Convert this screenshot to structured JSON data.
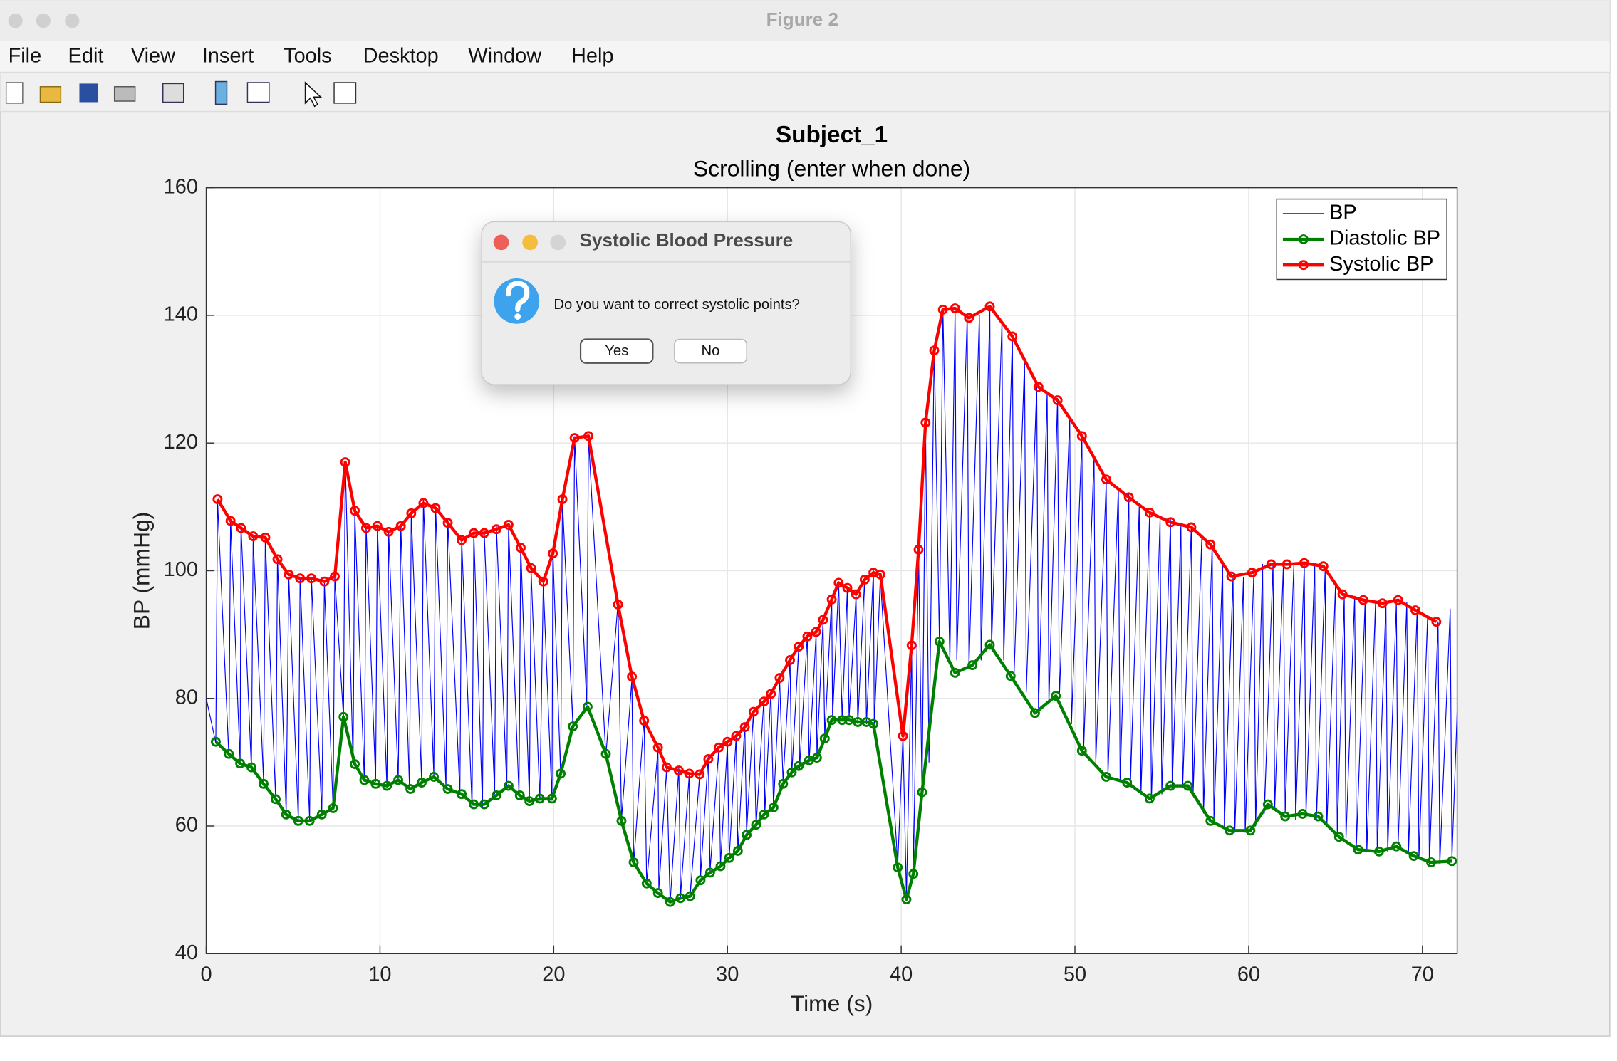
{
  "window": {
    "title": "Figure 2",
    "menu": [
      "File",
      "Edit",
      "View",
      "Insert",
      "Tools",
      "Desktop",
      "Window",
      "Help"
    ]
  },
  "dialog": {
    "title": "Systolic Blood Pressure",
    "message": "Do you want to correct systolic points?",
    "buttons": [
      "Yes",
      "No"
    ]
  },
  "chart_data": {
    "type": "line",
    "title": "Subject_1",
    "subtitle": "Scrolling (enter when done)",
    "xlabel": "Time (s)",
    "ylabel": "BP (mmHg)",
    "xlim": [
      0,
      72
    ],
    "ylim": [
      40,
      160
    ],
    "xticks": [
      0,
      10,
      20,
      30,
      40,
      50,
      60,
      70
    ],
    "yticks": [
      40,
      60,
      80,
      100,
      120,
      140,
      160
    ],
    "grid": true,
    "legend": "upper right",
    "series": [
      {
        "name": "BP",
        "color": "#0000ff",
        "marker": "none",
        "x": [
          0,
          0.55,
          0.65,
          1.3,
          1.4,
          1.95,
          2.0,
          2.6,
          2.7,
          3.3,
          3.4,
          4.0,
          4.1,
          4.6,
          4.75,
          5.3,
          5.4,
          5.95,
          6.05,
          6.65,
          6.8,
          7.3,
          7.4,
          7.9,
          8.0,
          8.45,
          8.55,
          9.1,
          9.2,
          9.75,
          9.85,
          10.4,
          10.5,
          11.05,
          11.2,
          11.7,
          11.8,
          12.4,
          12.5,
          13.1,
          13.2,
          13.8,
          13.9,
          14.6,
          14.7,
          15.3,
          15.4,
          15.9,
          16.0,
          16.6,
          16.7,
          17.3,
          17.4,
          18.0,
          18.1,
          18.6,
          18.7,
          19.2,
          19.4,
          19.9,
          19.95,
          20.4,
          20.5,
          21.1,
          21.2,
          21.9,
          22.0,
          23.0,
          23.7,
          23.9,
          24.5,
          24.6,
          25.2,
          25.35,
          26.0,
          26.05,
          26.5,
          26.7,
          27.2,
          27.3,
          27.8,
          27.85,
          28.4,
          28.45,
          28.9,
          29.0,
          29.5,
          29.6,
          30.0,
          30.1,
          30.5,
          30.6,
          31.0,
          31.1,
          31.5,
          31.65,
          32.1,
          32.15,
          32.5,
          32.65,
          33.0,
          33.2,
          33.6,
          33.7,
          34.1,
          34.15,
          34.6,
          34.7,
          35.1,
          35.15,
          35.5,
          35.6,
          36.0,
          36.05,
          36.4,
          36.6,
          36.9,
          37.0,
          37.4,
          37.5,
          37.9,
          38.0,
          38.4,
          38.45,
          38.8,
          39.8,
          40.1,
          40.3,
          40.6,
          40.7,
          41.0,
          41.2,
          41.4,
          41.6,
          41.9,
          42.2,
          42.4,
          42.8,
          43.1,
          43.2,
          43.8,
          43.9,
          44.5,
          44.6,
          45.1,
          45.2,
          45.8,
          45.9,
          46.4,
          46.5,
          47.1,
          47.2,
          47.8,
          47.9,
          48.4,
          48.5,
          49.0,
          49.1,
          49.7,
          49.8,
          50.4,
          50.5,
          51.1,
          51.2,
          51.8,
          51.9,
          52.5,
          52.6,
          53.1,
          53.2,
          53.7,
          53.8,
          54.3,
          54.4,
          54.9,
          55.0,
          55.5,
          55.6,
          56.1,
          56.2,
          56.7,
          56.8,
          57.3,
          57.4,
          57.9,
          58.0,
          58.5,
          58.6,
          59.1,
          59.2,
          59.7,
          59.8,
          60.3,
          60.4,
          60.8,
          60.9,
          61.4,
          61.5,
          62.0,
          62.1,
          62.6,
          62.7,
          63.2,
          63.3,
          63.8,
          63.9,
          64.4,
          64.5,
          65.0,
          65.1,
          65.5,
          65.6,
          66.1,
          66.2,
          66.7,
          66.8,
          67.3,
          67.4,
          67.9,
          68.0,
          68.5,
          68.6,
          69.1,
          69.2,
          69.7,
          69.8,
          70.3,
          70.4,
          70.9,
          71.0,
          71.6,
          71.7,
          72.0
        ],
        "values": [
          80,
          73,
          111,
          71,
          108,
          70,
          107,
          69,
          105,
          67,
          105,
          64,
          102,
          62,
          99,
          61,
          99,
          61,
          99,
          62,
          98,
          63,
          99,
          77,
          117,
          70,
          109,
          67,
          107,
          67,
          107,
          66,
          106,
          67,
          107,
          66,
          109,
          67,
          111,
          68,
          110,
          66,
          108,
          65,
          105,
          63,
          106,
          63,
          106,
          65,
          107,
          66,
          107,
          65,
          104,
          64,
          100,
          64,
          98,
          64,
          103,
          68,
          111,
          76,
          121,
          79,
          121,
          71,
          95,
          61,
          83,
          54,
          77,
          51,
          72,
          50,
          69,
          48,
          69,
          49,
          68,
          49,
          68,
          52,
          71,
          53,
          72,
          54,
          73,
          55,
          74,
          56,
          76,
          59,
          78,
          60,
          80,
          62,
          81,
          63,
          83,
          67,
          86,
          68,
          88,
          69,
          90,
          70,
          90,
          71,
          92,
          74,
          96,
          77,
          98,
          77,
          97,
          77,
          96,
          76,
          99,
          76,
          100,
          76,
          99,
          54,
          74,
          49,
          88,
          53,
          103,
          65,
          123,
          70,
          135,
          89,
          141,
          86,
          141,
          86,
          140,
          85,
          140,
          86,
          141,
          88,
          139,
          86,
          137,
          84,
          133,
          81,
          129,
          78,
          128,
          79,
          127,
          80,
          124,
          76,
          121,
          72,
          118,
          70,
          114,
          68,
          113,
          67,
          112,
          67,
          110,
          65,
          109,
          64,
          108,
          65,
          108,
          66,
          107,
          66,
          107,
          65,
          105,
          62,
          104,
          61,
          101,
          60,
          99,
          59,
          99,
          59,
          100,
          60,
          101,
          62,
          101,
          63,
          101,
          62,
          101,
          61,
          101,
          62,
          101,
          61,
          100,
          60,
          98,
          59,
          96,
          58,
          96,
          57,
          95,
          56,
          95,
          56,
          95,
          56,
          95,
          57,
          95,
          56,
          94,
          55,
          93,
          54,
          92,
          54,
          94,
          55,
          78
        ]
      },
      {
        "name": "Diastolic BP",
        "color": "#008000",
        "marker": "o",
        "x": [
          0.55,
          1.3,
          1.95,
          2.6,
          3.3,
          4.0,
          4.6,
          5.3,
          5.95,
          6.65,
          7.3,
          7.9,
          8.55,
          9.1,
          9.75,
          10.4,
          11.05,
          11.75,
          12.4,
          13.1,
          13.9,
          14.7,
          15.4,
          16.0,
          16.7,
          17.4,
          18.05,
          18.6,
          19.2,
          19.9,
          20.4,
          21.1,
          21.95,
          23.0,
          23.9,
          24.6,
          25.35,
          26.0,
          26.7,
          27.3,
          27.85,
          28.45,
          29.0,
          29.6,
          30.1,
          30.6,
          31.1,
          31.65,
          32.1,
          32.65,
          33.2,
          33.7,
          34.1,
          34.7,
          35.15,
          35.6,
          36.0,
          36.6,
          37.0,
          37.5,
          38.0,
          38.4,
          39.8,
          40.3,
          40.7,
          41.2,
          42.2,
          43.1,
          44.1,
          45.1,
          46.3,
          47.7,
          48.9,
          50.4,
          51.8,
          53.0,
          54.3,
          55.5,
          56.5,
          57.8,
          58.9,
          60.1,
          61.1,
          62.1,
          63.1,
          64.0,
          65.2,
          66.3,
          67.5,
          68.5,
          69.5,
          70.5,
          71.7
        ],
        "values": [
          73.2,
          71.3,
          69.8,
          69.2,
          66.6,
          64.2,
          61.8,
          60.8,
          60.8,
          61.8,
          62.8,
          77.1,
          69.7,
          67.2,
          66.6,
          66.3,
          67.2,
          65.8,
          66.8,
          67.7,
          65.8,
          65.0,
          63.4,
          63.4,
          64.8,
          66.3,
          64.8,
          63.9,
          64.3,
          64.3,
          68.2,
          75.6,
          78.7,
          71.3,
          60.8,
          54.3,
          51.0,
          49.5,
          48.1,
          48.7,
          49.0,
          51.5,
          52.7,
          53.7,
          55.0,
          56.1,
          58.6,
          60.2,
          61.8,
          62.9,
          66.6,
          68.4,
          69.4,
          70.3,
          70.7,
          73.7,
          76.6,
          76.6,
          76.6,
          76.3,
          76.3,
          76.0,
          53.5,
          48.5,
          52.5,
          65.3,
          88.9,
          84.0,
          85.2,
          88.4,
          83.5,
          77.7,
          80.4,
          71.8,
          67.7,
          66.8,
          64.3,
          66.3,
          66.3,
          60.8,
          59.3,
          59.3,
          63.4,
          61.5,
          61.9,
          61.5,
          58.3,
          56.3,
          56.0,
          56.8,
          55.3,
          54.3,
          54.5
        ]
      },
      {
        "name": "Systolic BP",
        "color": "#ff0000",
        "marker": "o",
        "x": [
          0.65,
          1.4,
          2.0,
          2.7,
          3.4,
          4.1,
          4.75,
          5.4,
          6.05,
          6.8,
          7.4,
          8.0,
          8.55,
          9.2,
          9.85,
          10.5,
          11.2,
          11.8,
          12.5,
          13.2,
          13.9,
          14.7,
          15.4,
          16.0,
          16.7,
          17.4,
          18.1,
          18.7,
          19.4,
          19.95,
          20.5,
          21.2,
          22.0,
          23.7,
          24.5,
          25.2,
          26.0,
          26.5,
          27.2,
          27.8,
          28.4,
          28.9,
          29.5,
          30.0,
          30.5,
          31.0,
          31.5,
          32.1,
          32.5,
          33.0,
          33.6,
          34.1,
          34.6,
          35.1,
          35.5,
          36.0,
          36.4,
          36.9,
          37.4,
          37.9,
          38.4,
          38.8,
          40.1,
          40.6,
          41.0,
          41.4,
          41.9,
          42.4,
          43.1,
          43.9,
          45.1,
          46.4,
          47.9,
          49.0,
          50.4,
          51.8,
          53.1,
          54.3,
          55.5,
          56.7,
          57.8,
          59.0,
          60.2,
          61.3,
          62.2,
          63.2,
          64.3,
          65.4,
          66.6,
          67.7,
          68.6,
          69.6,
          70.8
        ],
        "values": [
          111.2,
          107.8,
          106.7,
          105.4,
          105.2,
          101.8,
          99.4,
          98.8,
          98.8,
          98.3,
          99.1,
          117.0,
          109.4,
          106.7,
          107.0,
          106.1,
          107.0,
          109.0,
          110.6,
          109.8,
          107.5,
          104.8,
          105.9,
          105.9,
          106.5,
          107.2,
          103.6,
          100.4,
          98.3,
          102.7,
          111.2,
          120.8,
          121.1,
          94.7,
          83.4,
          76.5,
          72.3,
          69.2,
          68.7,
          68.2,
          68.1,
          70.5,
          72.3,
          73.2,
          74.1,
          75.5,
          77.9,
          79.5,
          80.7,
          83.2,
          86.0,
          88.1,
          89.7,
          90.4,
          92.3,
          95.5,
          98.1,
          97.3,
          96.3,
          98.6,
          99.7,
          99.4,
          74.1,
          88.3,
          103.3,
          123.2,
          134.5,
          140.9,
          141.1,
          139.6,
          141.4,
          136.7,
          128.8,
          126.7,
          121.1,
          114.3,
          111.5,
          109.1,
          107.6,
          106.8,
          104.1,
          99.1,
          99.7,
          101.0,
          101.0,
          101.2,
          100.7,
          96.3,
          95.4,
          94.9,
          95.4,
          93.8,
          92.0
        ]
      }
    ]
  }
}
